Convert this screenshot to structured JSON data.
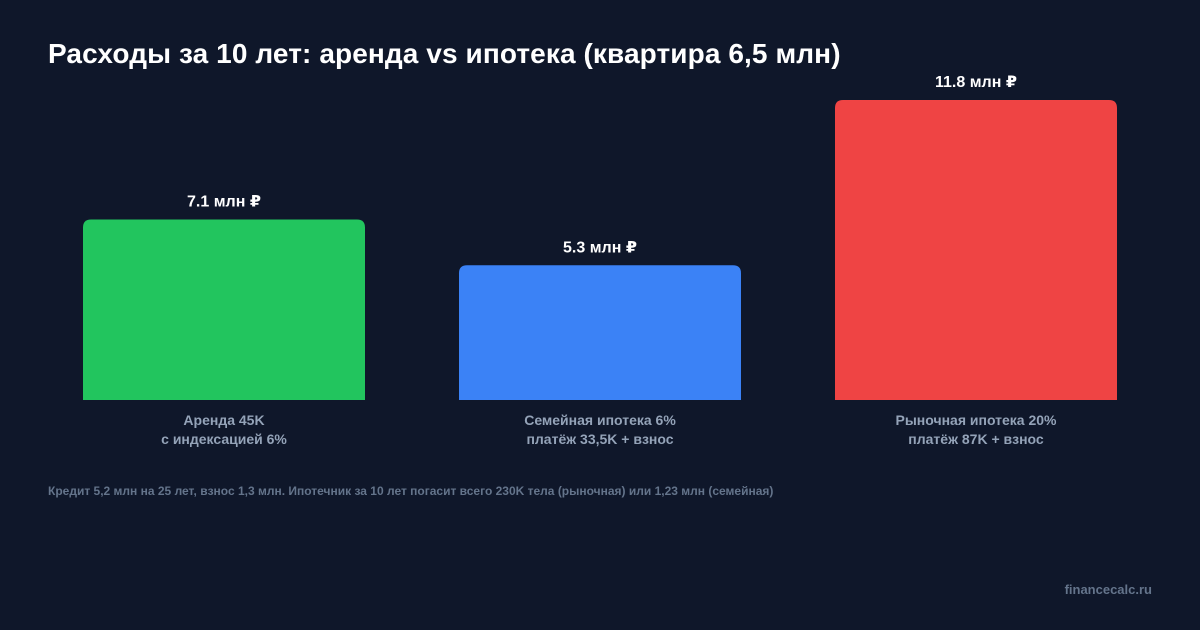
{
  "chart_data": {
    "type": "bar",
    "title": "Расходы за 10 лет: аренда vs ипотека (квартира 6,5 млн)",
    "categories": [
      [
        "Аренда 45K",
        "с индексацией 6%"
      ],
      [
        "Семейная ипотека 6%",
        "платёж 33,5K + взнос"
      ],
      [
        "Рыночная ипотека 20%",
        "платёж 87K + взнос"
      ]
    ],
    "values": [
      7.1,
      5.3,
      11.8
    ],
    "value_labels": [
      "7.1 млн ₽",
      "5.3 млн ₽",
      "11.8 млн ₽"
    ],
    "colors": [
      "#22c55e",
      "#3b82f6",
      "#ef4444"
    ],
    "ylim": [
      0,
      11.8
    ],
    "grid": false,
    "legend": "none"
  },
  "footnote": "Кредит 5,2 млн на 25 лет, взнос 1,3 млн. Ипотечник за 10 лет погасит всего 230K тела (рыночная) или 1,23 млн (семейная)",
  "watermark": "financecalc.ru",
  "colors": {
    "background": "#0f172a",
    "text": "#ffffff",
    "muted": "#94a3b8"
  }
}
